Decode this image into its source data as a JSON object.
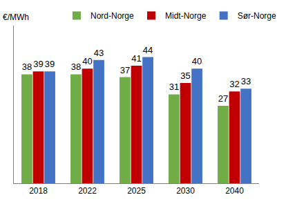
{
  "chart_data": {
    "type": "bar",
    "y_label": "€/MWh",
    "categories": [
      "2018",
      "2022",
      "2025",
      "2030",
      "2040"
    ],
    "series": [
      {
        "name": "Nord-Norge",
        "color": "#70ad47",
        "values": [
          38,
          38,
          37,
          31,
          27
        ]
      },
      {
        "name": "Midt-Norge",
        "color": "#c00000",
        "values": [
          39,
          40,
          41,
          35,
          32
        ]
      },
      {
        "name": "Sør-Norge",
        "color": "#4472c4",
        "values": [
          39,
          43,
          44,
          40,
          33
        ]
      }
    ],
    "ylim": [
      0,
      55
    ],
    "grid": false,
    "legend": "top",
    "data_labels": true,
    "tick_labels": "x"
  }
}
